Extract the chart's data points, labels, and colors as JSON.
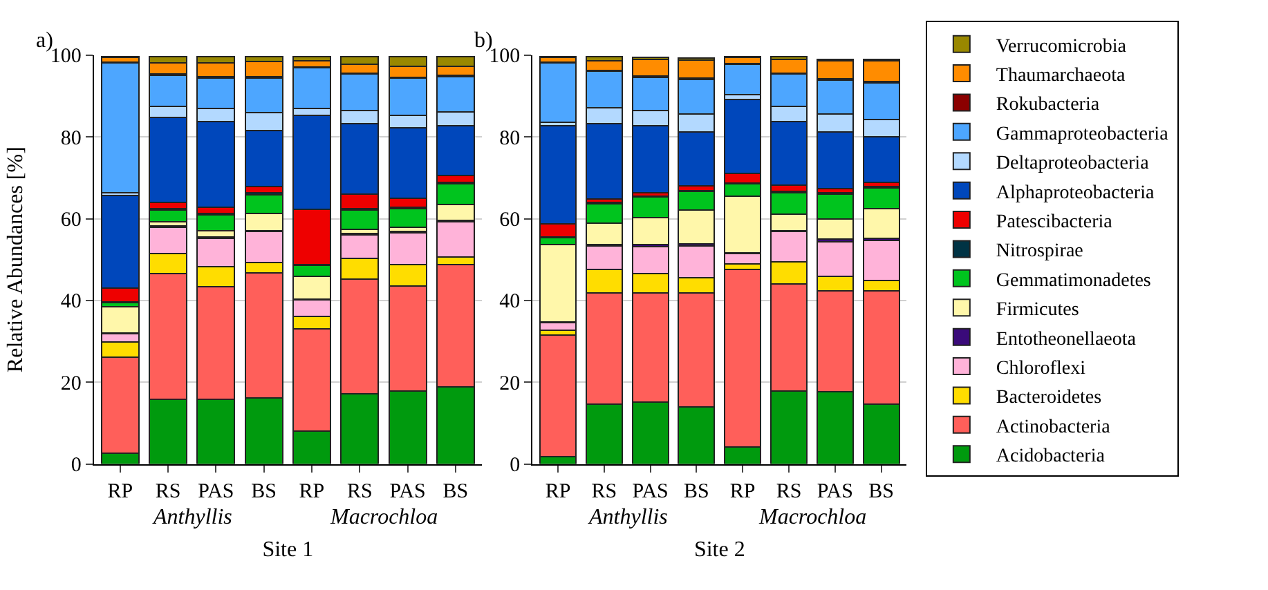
{
  "chart_data": [
    {
      "type": "bar",
      "title": "a)",
      "ylabel": "Relative Abundances [%]",
      "xlabel": "Site 1",
      "stacked": true,
      "grid": "y",
      "legend": "right",
      "categories": [
        "RP",
        "RS",
        "PAS",
        "BS",
        "RP",
        "RS",
        "PAS",
        "BS"
      ],
      "annotations": [
        "Anthyllis",
        "Macrochloa"
      ],
      "ylim": [
        0,
        100
      ],
      "yticks": [
        0,
        20,
        40,
        60,
        80,
        100
      ],
      "series": [
        {
          "name": "Acidobacteria",
          "color": "#009a0e",
          "values": [
            2.7,
            15.8,
            15.8,
            16.1,
            8.1,
            17.1,
            17.9,
            18.9
          ]
        },
        {
          "name": "Actinobacteria",
          "color": "#ff5f5a",
          "values": [
            23.4,
            30.7,
            27.5,
            30.7,
            24.9,
            28.1,
            25.6,
            29.9
          ]
        },
        {
          "name": "Bacteroidetes",
          "color": "#ffdd00",
          "values": [
            3.7,
            5.0,
            5.0,
            2.5,
            3.1,
            5.1,
            5.3,
            1.9
          ]
        },
        {
          "name": "Chloroflexi",
          "color": "#ffb3d9",
          "values": [
            2.1,
            6.4,
            6.9,
            7.5,
            4.0,
            5.7,
            7.7,
            8.5
          ]
        },
        {
          "name": "Entotheonellaeota",
          "color": "#3a0a7a",
          "values": [
            0.2,
            0.3,
            0.3,
            0.3,
            0.2,
            0.3,
            0.3,
            0.3
          ]
        },
        {
          "name": "Firmicutes",
          "color": "#fff7aa",
          "values": [
            6.4,
            1.0,
            1.5,
            4.2,
            5.6,
            1.1,
            1.1,
            3.9
          ]
        },
        {
          "name": "Gemmatimonadetes",
          "color": "#00c41e",
          "values": [
            1.0,
            2.9,
            4.0,
            4.6,
            2.7,
            4.7,
            4.6,
            5.1
          ]
        },
        {
          "name": "Nitrospirae",
          "color": "#003344",
          "values": [
            0.2,
            0.3,
            0.3,
            0.5,
            0.2,
            0.3,
            0.3,
            0.3
          ]
        },
        {
          "name": "Patescibacteria",
          "color": "#ee0000",
          "values": [
            3.4,
            1.6,
            1.5,
            1.4,
            13.5,
            3.6,
            2.2,
            1.8
          ]
        },
        {
          "name": "Alphaproteobacteria",
          "color": "#0047bb",
          "values": [
            22.6,
            20.8,
            21.0,
            13.8,
            23.0,
            17.2,
            17.2,
            12.2
          ]
        },
        {
          "name": "Deltaproteobacteria",
          "color": "#b3d9ff",
          "values": [
            0.6,
            2.7,
            3.2,
            4.3,
            1.7,
            3.2,
            3.1,
            3.3
          ]
        },
        {
          "name": "Gammaproteobacteria",
          "color": "#4da6ff",
          "values": [
            31.8,
            7.6,
            7.4,
            8.5,
            9.9,
            9.0,
            9.1,
            8.7
          ]
        },
        {
          "name": "Rokubacteria",
          "color": "#8b0000",
          "values": [
            0.2,
            0.3,
            0.3,
            0.3,
            0.2,
            0.2,
            0.2,
            0.2
          ]
        },
        {
          "name": "Thaumarchaeota",
          "color": "#ff8c00",
          "values": [
            1.1,
            2.7,
            3.4,
            3.7,
            1.5,
            2.2,
            2.6,
            2.2
          ]
        },
        {
          "name": "Verrucomicrobia",
          "color": "#998800",
          "values": [
            0.3,
            1.6,
            1.6,
            1.3,
            1.1,
            1.9,
            2.5,
            2.5
          ]
        }
      ]
    },
    {
      "type": "bar",
      "title": "b)",
      "xlabel": "Site 2",
      "stacked": true,
      "grid": "y",
      "categories": [
        "RP",
        "RS",
        "PAS",
        "BS",
        "RP",
        "RS",
        "PAS",
        "BS"
      ],
      "annotations": [
        "Anthyllis",
        "Macrochloa"
      ],
      "ylim": [
        0,
        100
      ],
      "yticks": [
        0,
        20,
        40,
        60,
        80,
        100
      ],
      "series": [
        {
          "color": "#009a0e",
          "values": [
            1.8,
            14.7,
            15.2,
            13.9,
            4.1,
            17.9,
            17.7,
            14.7
          ]
        },
        {
          "color": "#ff5f5a",
          "values": [
            29.8,
            27.1,
            26.6,
            27.9,
            43.4,
            26.2,
            24.7,
            27.7
          ]
        },
        {
          "color": "#ffdd00",
          "values": [
            1.1,
            5.7,
            4.7,
            3.8,
            1.4,
            5.3,
            3.5,
            2.5
          ]
        },
        {
          "color": "#ffb3d9",
          "values": [
            1.8,
            5.9,
            6.7,
            7.8,
            2.5,
            7.4,
            8.5,
            9.8
          ]
        },
        {
          "color": "#3a0a7a",
          "values": [
            0.2,
            0.3,
            0.4,
            0.4,
            0.2,
            0.3,
            0.6,
            0.5
          ]
        },
        {
          "color": "#fff7aa",
          "values": [
            19.0,
            5.2,
            6.6,
            8.3,
            13.9,
            4.0,
            5.0,
            7.3
          ]
        },
        {
          "color": "#00c41e",
          "values": [
            1.6,
            4.7,
            5.1,
            4.5,
            3.0,
            5.2,
            6.0,
            5.1
          ]
        },
        {
          "color": "#003344",
          "values": [
            0.2,
            0.3,
            0.2,
            0.3,
            0.2,
            0.3,
            0.3,
            0.3
          ]
        },
        {
          "color": "#ee0000",
          "values": [
            3.2,
            1.0,
            0.8,
            1.1,
            2.3,
            1.6,
            1.1,
            1.0
          ]
        },
        {
          "color": "#0047bb",
          "values": [
            24.1,
            18.3,
            16.5,
            13.2,
            18.1,
            15.6,
            13.8,
            11.1
          ]
        },
        {
          "color": "#b3d9ff",
          "values": [
            0.7,
            4.0,
            3.7,
            4.4,
            1.3,
            3.7,
            4.4,
            4.3
          ]
        },
        {
          "color": "#4da6ff",
          "values": [
            14.6,
            8.8,
            8.1,
            8.5,
            7.4,
            7.9,
            8.3,
            8.9
          ]
        },
        {
          "color": "#8b0000",
          "values": [
            0.2,
            0.2,
            0.3,
            0.3,
            0.2,
            0.2,
            0.3,
            0.3
          ]
        },
        {
          "color": "#ff8c00",
          "values": [
            1.1,
            2.4,
            4.1,
            4.4,
            1.4,
            3.4,
            4.4,
            5.1
          ]
        },
        {
          "color": "#998800",
          "values": [
            0.2,
            1.0,
            0.5,
            0.5,
            0.2,
            0.6,
            0.4,
            0.4
          ]
        }
      ]
    }
  ]
}
